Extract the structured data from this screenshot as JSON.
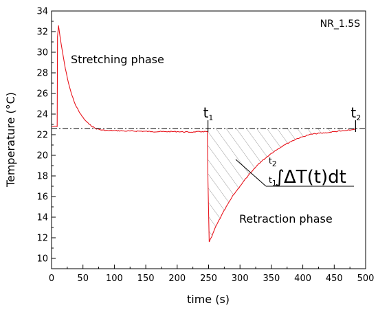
{
  "chart_data": {
    "type": "line",
    "title": "",
    "sample_label": "NR_1.5S",
    "xlabel": "time (s)",
    "ylabel": "Temperature (°C)",
    "xlim": [
      0,
      500
    ],
    "ylim": [
      9,
      34
    ],
    "x_ticks": [
      0,
      50,
      100,
      150,
      200,
      250,
      300,
      350,
      400,
      450,
      500
    ],
    "y_ticks": [
      10,
      12,
      14,
      16,
      18,
      20,
      22,
      24,
      26,
      28,
      30,
      32,
      34
    ],
    "grid": false,
    "series": [
      {
        "color": "#e8141c",
        "x": [
          0,
          9,
          9.5,
          11,
          14,
          18,
          22,
          27,
          32,
          38,
          45,
          52,
          60,
          70,
          80,
          90,
          100,
          120,
          140,
          160,
          180,
          200,
          220,
          240,
          248,
          249,
          251,
          255,
          260,
          270,
          280,
          290,
          300,
          310,
          320,
          330,
          340,
          350,
          360,
          370,
          380,
          390,
          400,
          410,
          420,
          430,
          440,
          450,
          460,
          470,
          480,
          485
        ],
        "y": [
          22.8,
          22.8,
          31.5,
          32.6,
          31.3,
          29.8,
          28.4,
          27.0,
          25.9,
          24.9,
          24.1,
          23.5,
          23.0,
          22.6,
          22.45,
          22.4,
          22.4,
          22.35,
          22.35,
          22.3,
          22.3,
          22.3,
          22.25,
          22.3,
          22.3,
          17.5,
          11.6,
          12.1,
          12.9,
          14.1,
          15.2,
          16.2,
          17.0,
          17.8,
          18.5,
          19.2,
          19.7,
          20.2,
          20.6,
          21.0,
          21.3,
          21.6,
          21.8,
          22.0,
          22.1,
          22.15,
          22.2,
          22.3,
          22.35,
          22.4,
          22.5,
          22.6
        ]
      }
    ],
    "baseline": 22.6,
    "markers": [
      {
        "x": 249,
        "main": "t",
        "sub": "1"
      },
      {
        "x": 484,
        "main": "t",
        "sub": "2"
      }
    ],
    "annotations": {
      "stretch": "Stretching phase",
      "retract": "Retraction phase",
      "integral": {
        "upper": "2",
        "lower": "1",
        "lim_letter": "t",
        "sign": "∫",
        "body": "ΔT(t)dt"
      }
    }
  }
}
